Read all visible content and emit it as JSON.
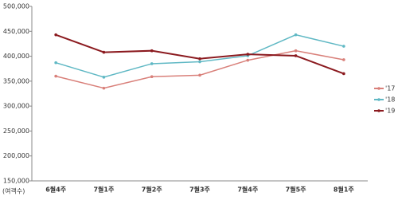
{
  "chart_data": {
    "type": "line",
    "y_label": "(여객수)",
    "categories": [
      "6월4주",
      "7월1주",
      "7월2주",
      "7월3주",
      "7월4주",
      "7월5주",
      "8월1주"
    ],
    "series": [
      {
        "name": "'17",
        "color": "#d9807a",
        "values": [
          360000,
          336000,
          359000,
          362000,
          392000,
          411000,
          393000
        ]
      },
      {
        "name": "'18",
        "color": "#5fb8c4",
        "values": [
          387000,
          358000,
          385000,
          389000,
          401000,
          443000,
          420000
        ]
      },
      {
        "name": "'19",
        "color": "#8b1a1f",
        "values": [
          443000,
          408000,
          411000,
          395000,
          404000,
          401000,
          365000
        ]
      }
    ],
    "ylim": [
      150000,
      500000
    ],
    "yticks": [
      {
        "value": 150000,
        "label": "150,000"
      },
      {
        "value": 200000,
        "label": "200,000"
      },
      {
        "value": 250000,
        "label": "250,000"
      },
      {
        "value": 300000,
        "label": "300,000"
      },
      {
        "value": 350000,
        "label": "350,000"
      },
      {
        "value": 400000,
        "label": "400,000"
      },
      {
        "value": 450000,
        "label": "450,000"
      },
      {
        "value": 500000,
        "label": "500,000"
      }
    ],
    "grid": false,
    "legend": "right"
  }
}
